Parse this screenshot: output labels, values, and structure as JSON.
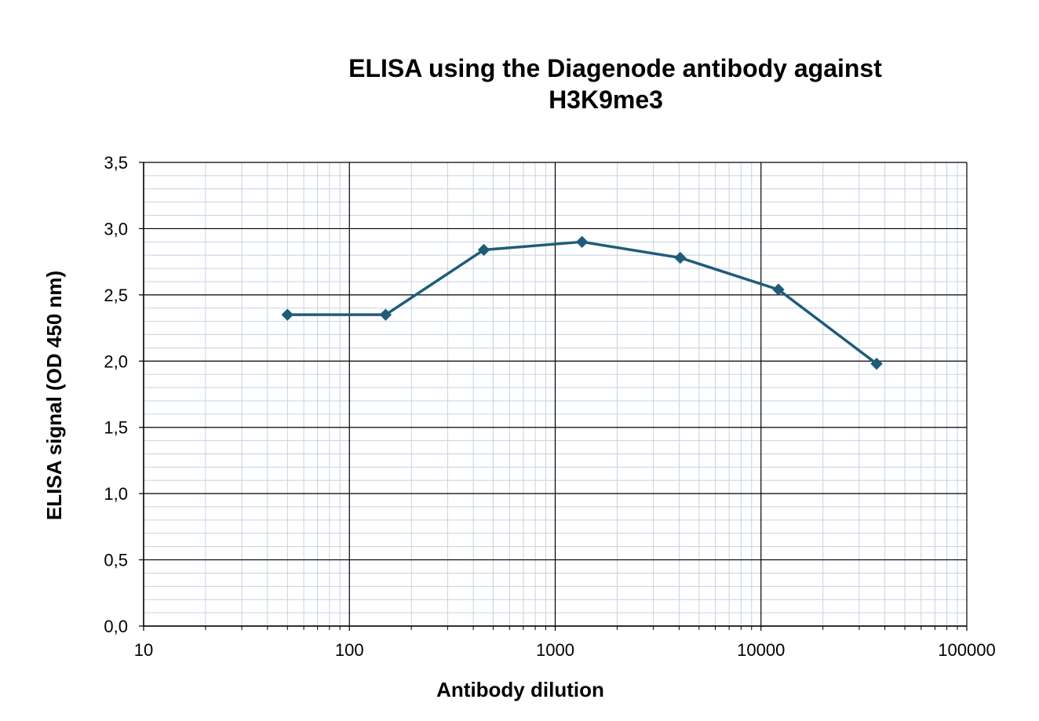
{
  "chart_data": {
    "type": "line",
    "title_lines": [
      "ELISA using the Diagenode antibody against",
      "H3K9me3"
    ],
    "xlabel": "Antibody dilution",
    "ylabel": "ELISA signal (OD 450 nm)",
    "x_scale": "log",
    "xlim": [
      10,
      100000
    ],
    "ylim": [
      0,
      3.5
    ],
    "x_ticks": [
      10,
      100,
      1000,
      10000,
      100000
    ],
    "x_tick_labels": [
      "10",
      "100",
      "1000",
      "10000",
      "100000"
    ],
    "y_ticks": [
      0,
      0.5,
      1,
      1.5,
      2,
      2.5,
      3,
      3.5
    ],
    "y_tick_labels": [
      "0,0",
      "0,5",
      "1,0",
      "1,5",
      "2,0",
      "2,5",
      "3,0",
      "3,5"
    ],
    "grid": true,
    "colors": {
      "series": "#1F5C7A",
      "major_grid": "#000000",
      "minor_grid": "#C6D3DF"
    },
    "series": [
      {
        "x": [
          50,
          150,
          450,
          1350,
          4050,
          12150,
          36450
        ],
        "y": [
          2.35,
          2.35,
          2.84,
          2.9,
          2.78,
          2.54,
          1.98
        ]
      }
    ]
  }
}
